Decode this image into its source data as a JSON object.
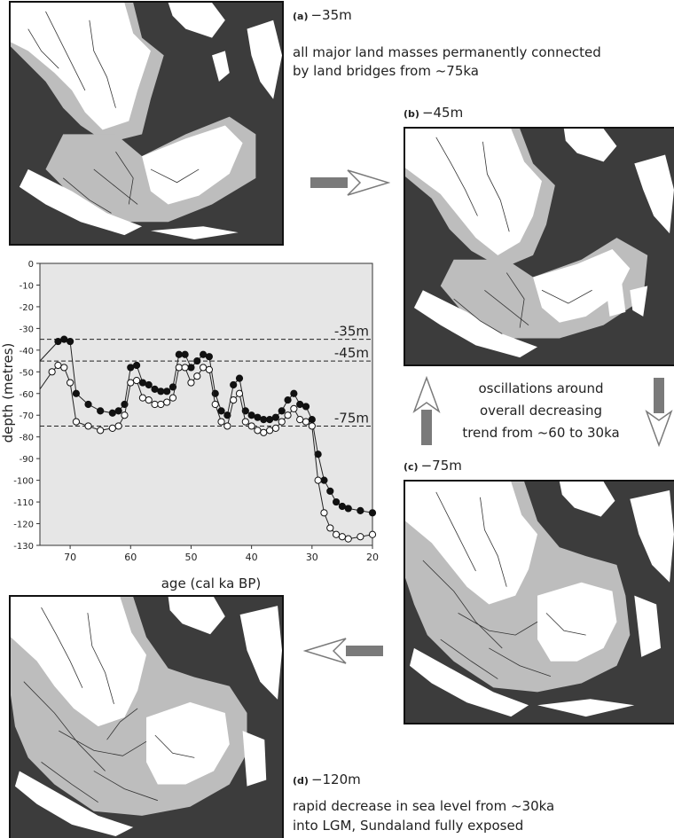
{
  "panels": {
    "a": {
      "letter": "(a)",
      "depth": "−35m"
    },
    "b": {
      "letter": "(b)",
      "depth": "−45m"
    },
    "c": {
      "letter": "(c)",
      "depth": "−75m"
    },
    "d": {
      "letter": "(d)",
      "depth": "−120m"
    }
  },
  "notes": {
    "a_line1": "all major land masses permanently connected",
    "a_line2": "by land bridges from ~75ka",
    "bc_line1": "oscillations around",
    "bc_line2": "overall decreasing",
    "bc_line3": "trend from ~60 to 30ka",
    "d_line1": "rapid decrease in sea level from ~30ka",
    "d_line2": "into LGM, Sundaland fully exposed"
  },
  "colors": {
    "sea": "#3c3c3c",
    "land": "#ffffff",
    "shelf": "#bdbdbd",
    "river": "#333333",
    "arrow": "#7a7a7a",
    "plot_bg": "#e6e6e6"
  },
  "icons": {
    "arrow_right": "arrow-right-icon",
    "arrow_down": "arrow-down-icon",
    "arrow_left": "arrow-left-icon",
    "arrow_up": "arrow-up-icon"
  },
  "chart_data": {
    "type": "line",
    "xlabel": "age (cal ka BP)",
    "ylabel": "depth (metres)",
    "xlim": [
      75,
      20
    ],
    "ylim": [
      -130,
      0
    ],
    "xticks": [
      70,
      60,
      50,
      40,
      30,
      20
    ],
    "yticks": [
      0,
      -10,
      -20,
      -30,
      -40,
      -50,
      -60,
      -70,
      -80,
      -90,
      -100,
      -110,
      -120,
      -130
    ],
    "reference_lines": [
      {
        "y": -35,
        "label": "-35m"
      },
      {
        "y": -45,
        "label": "-45m"
      },
      {
        "y": -75,
        "label": "-75m"
      }
    ],
    "grid": false,
    "series": [
      {
        "marker": "filled",
        "points": [
          [
            75,
            -60
          ],
          [
            75,
            -45
          ],
          [
            72,
            -36
          ],
          [
            71,
            -35
          ],
          [
            70,
            -36
          ],
          [
            69,
            -60
          ],
          [
            67,
            -65
          ],
          [
            65,
            -68
          ],
          [
            63,
            -69
          ],
          [
            62,
            -68
          ],
          [
            61,
            -65
          ],
          [
            60,
            -48
          ],
          [
            59,
            -47
          ],
          [
            58,
            -55
          ],
          [
            57,
            -56
          ],
          [
            56,
            -58
          ],
          [
            55,
            -59
          ],
          [
            54,
            -59
          ],
          [
            53,
            -57
          ],
          [
            52,
            -42
          ],
          [
            51,
            -42
          ],
          [
            50,
            -48
          ],
          [
            49,
            -45
          ],
          [
            48,
            -42
          ],
          [
            47,
            -43
          ],
          [
            46,
            -60
          ],
          [
            45,
            -68
          ],
          [
            44,
            -70
          ],
          [
            43,
            -56
          ],
          [
            42,
            -53
          ],
          [
            41,
            -68
          ],
          [
            40,
            -70
          ],
          [
            39,
            -71
          ],
          [
            38,
            -72
          ],
          [
            37,
            -72
          ],
          [
            36,
            -71
          ],
          [
            35,
            -68
          ],
          [
            34,
            -63
          ],
          [
            33,
            -60
          ],
          [
            32,
            -65
          ],
          [
            31,
            -66
          ],
          [
            30,
            -72
          ],
          [
            29,
            -88
          ],
          [
            28,
            -100
          ],
          [
            27,
            -105
          ],
          [
            26,
            -110
          ],
          [
            25,
            -112
          ],
          [
            24,
            -113
          ],
          [
            22,
            -114
          ],
          [
            20,
            -115
          ]
        ]
      },
      {
        "marker": "open",
        "points": [
          [
            75,
            -72
          ],
          [
            75,
            -58
          ],
          [
            73,
            -50
          ],
          [
            72,
            -47
          ],
          [
            71,
            -48
          ],
          [
            70,
            -55
          ],
          [
            69,
            -73
          ],
          [
            67,
            -75
          ],
          [
            65,
            -77
          ],
          [
            63,
            -76
          ],
          [
            62,
            -75
          ],
          [
            61,
            -70
          ],
          [
            60,
            -55
          ],
          [
            59,
            -54
          ],
          [
            58,
            -62
          ],
          [
            57,
            -63
          ],
          [
            56,
            -65
          ],
          [
            55,
            -65
          ],
          [
            54,
            -64
          ],
          [
            53,
            -62
          ],
          [
            52,
            -48
          ],
          [
            51,
            -48
          ],
          [
            50,
            -55
          ],
          [
            49,
            -52
          ],
          [
            48,
            -48
          ],
          [
            47,
            -49
          ],
          [
            46,
            -65
          ],
          [
            45,
            -73
          ],
          [
            44,
            -75
          ],
          [
            43,
            -63
          ],
          [
            42,
            -60
          ],
          [
            41,
            -73
          ],
          [
            40,
            -75
          ],
          [
            39,
            -77
          ],
          [
            38,
            -78
          ],
          [
            37,
            -77
          ],
          [
            36,
            -76
          ],
          [
            35,
            -73
          ],
          [
            34,
            -70
          ],
          [
            33,
            -67
          ],
          [
            32,
            -72
          ],
          [
            31,
            -73
          ],
          [
            30,
            -75
          ],
          [
            29,
            -100
          ],
          [
            28,
            -115
          ],
          [
            27,
            -122
          ],
          [
            26,
            -125
          ],
          [
            25,
            -126
          ],
          [
            24,
            -127
          ],
          [
            22,
            -126
          ],
          [
            20,
            -125
          ]
        ]
      }
    ]
  }
}
